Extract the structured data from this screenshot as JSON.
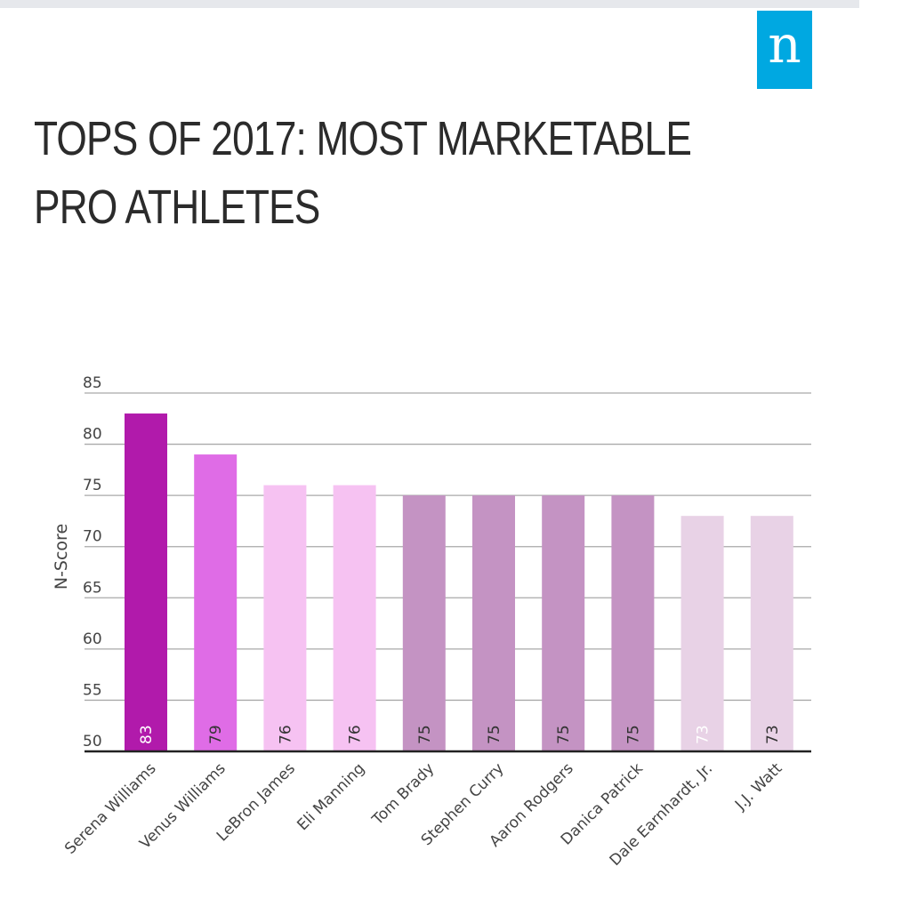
{
  "logo": {
    "letter": "n"
  },
  "title_lines": [
    "TOPS OF 2017: MOST MARKETABLE",
    "PRO ATHLETES"
  ],
  "chart_data": {
    "type": "bar",
    "title": "TOPS OF 2017: MOST MARKETABLE PRO ATHLETES",
    "xlabel": "",
    "ylabel": "N-Score",
    "ylim": [
      50,
      85
    ],
    "yticks": [
      50,
      55,
      60,
      65,
      70,
      75,
      80,
      85
    ],
    "grid": true,
    "categories": [
      "Serena Williams",
      "Venus Williams",
      "LeBron James",
      "Eli Manning",
      "Tom Brady",
      "Stephen Curry",
      "Aaron Rodgers",
      "Danica Patrick",
      "Dale Earnhardt, Jr.",
      "J.J. Watt"
    ],
    "values": [
      83,
      79,
      76,
      76,
      75,
      75,
      75,
      75,
      73,
      73
    ],
    "colors": [
      "#b11aab",
      "#df6ce6",
      "#f6c2f2",
      "#f6c2f2",
      "#c493c3",
      "#c493c3",
      "#c493c3",
      "#c493c3",
      "#e8d2e6",
      "#e8d2e6"
    ],
    "label_colors": [
      "#ffffff",
      "#333333",
      "#333333",
      "#333333",
      "#333333",
      "#333333",
      "#333333",
      "#333333",
      "#ffffff",
      "#333333"
    ]
  }
}
